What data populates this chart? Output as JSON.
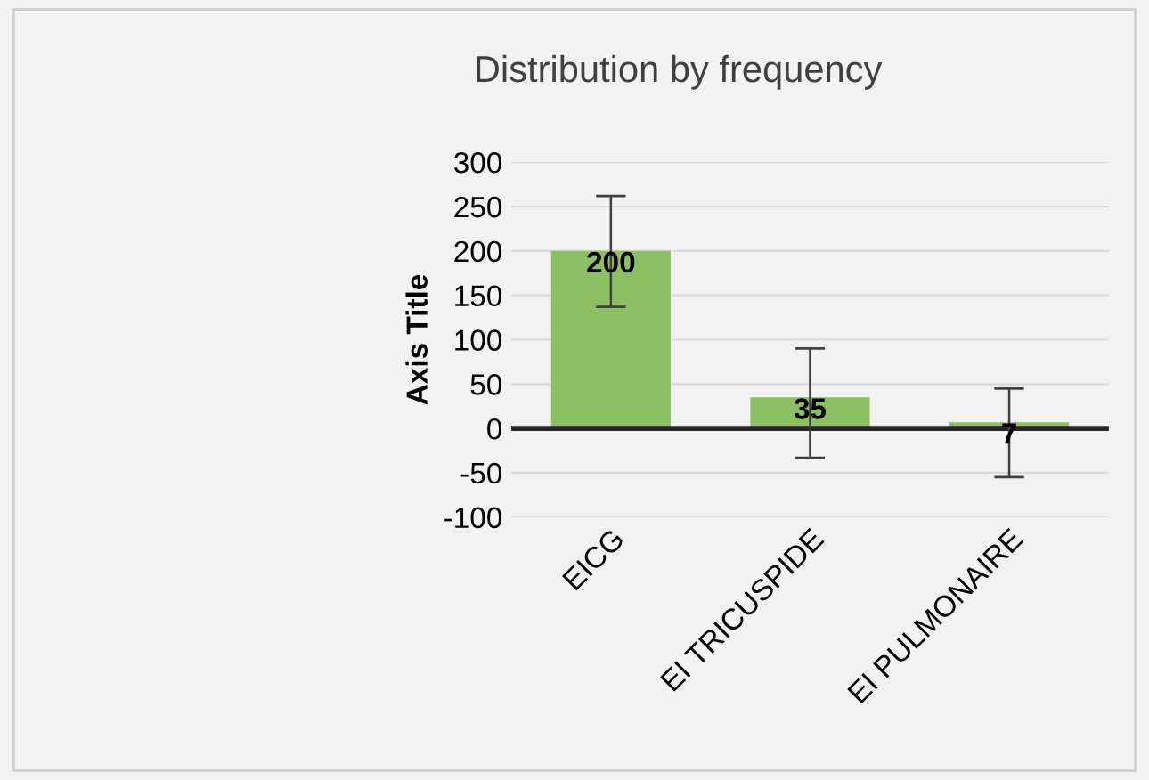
{
  "chart_data": {
    "type": "bar",
    "title": "Distribution by frequency",
    "ylabel": "Axis Title",
    "categories": [
      "EICG",
      "EI TRICUSPIDE",
      "EI PULMONAIRE"
    ],
    "values": [
      200,
      35,
      7
    ],
    "errors": [
      [
        137,
        262
      ],
      [
        -33,
        90
      ],
      [
        -55,
        45
      ]
    ],
    "color": "#8cc063",
    "data_labels": true,
    "ylim": [
      -100,
      300
    ],
    "yticks": [
      -100,
      -50,
      0,
      50,
      100,
      150,
      200,
      250,
      300
    ],
    "grid": "y"
  }
}
